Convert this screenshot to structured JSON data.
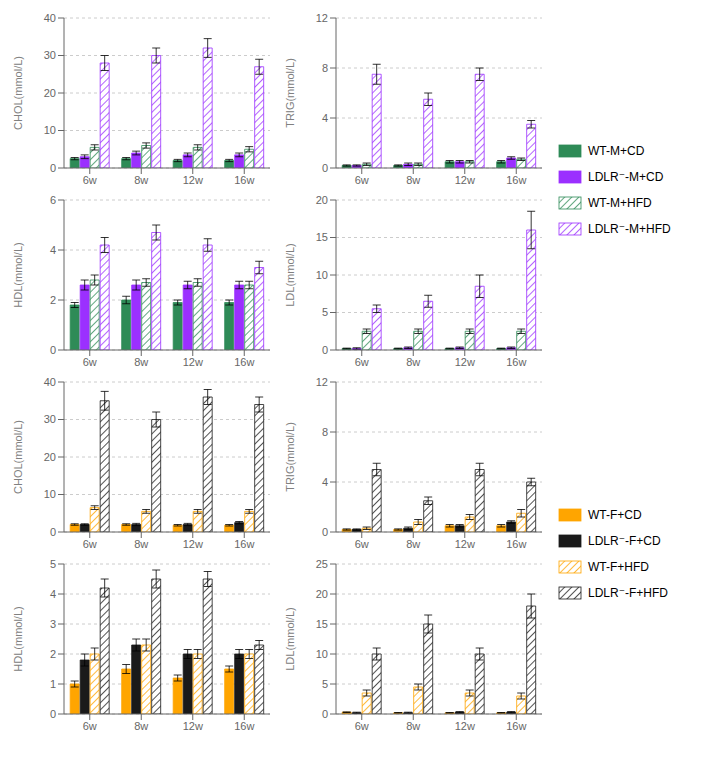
{
  "chart_data": [
    {
      "type": "bar",
      "ylabel": "CHOL(mmol/L)",
      "categories": [
        "6w",
        "8w",
        "12w",
        "16w"
      ],
      "ylim": [
        0,
        40
      ],
      "yticks": [
        0,
        10,
        20,
        30,
        40
      ],
      "legend": "right",
      "series": [
        {
          "name": "WT-M+CD",
          "color": "#2e8b57",
          "values": [
            2.5,
            2.5,
            2.0,
            2.0
          ],
          "errors": [
            0.3,
            0.3,
            0.3,
            0.3
          ]
        },
        {
          "name": "LDLR⁻-M+CD",
          "color": "#9b30ff",
          "values": [
            3.0,
            4.0,
            3.5,
            3.5
          ],
          "errors": [
            0.5,
            0.5,
            0.5,
            0.5
          ]
        },
        {
          "name": "WT-M+HFD",
          "color": "#2e8b57",
          "values": [
            5.5,
            6.0,
            5.5,
            5.0
          ],
          "errors": [
            0.7,
            0.7,
            0.7,
            0.7
          ]
        },
        {
          "name": "LDLR⁻-M+HFD",
          "color": "#9b30ff",
          "values": [
            28.0,
            30.0,
            32.0,
            27.0
          ],
          "errors": [
            2.0,
            2.0,
            2.5,
            2.0
          ]
        }
      ]
    },
    {
      "type": "bar",
      "ylabel": "TRIG(mmol/L)",
      "categories": [
        "6w",
        "8w",
        "12w",
        "16w"
      ],
      "ylim": [
        0,
        12
      ],
      "yticks": [
        0,
        4,
        8,
        12
      ],
      "series": [
        {
          "name": "WT-M+CD",
          "color": "#2e8b57",
          "values": [
            0.2,
            0.2,
            0.5,
            0.5
          ],
          "errors": [
            0.05,
            0.05,
            0.1,
            0.1
          ]
        },
        {
          "name": "LDLR⁻-M+CD",
          "color": "#9b30ff",
          "values": [
            0.2,
            0.3,
            0.5,
            0.8
          ],
          "errors": [
            0.05,
            0.1,
            0.1,
            0.1
          ]
        },
        {
          "name": "WT-M+HFD",
          "color": "#2e8b57",
          "values": [
            0.3,
            0.3,
            0.5,
            0.7
          ],
          "errors": [
            0.1,
            0.1,
            0.1,
            0.1
          ]
        },
        {
          "name": "LDLR⁻-M+HFD",
          "color": "#9b30ff",
          "values": [
            7.5,
            5.5,
            7.5,
            3.5
          ],
          "errors": [
            0.8,
            0.5,
            0.5,
            0.3
          ]
        }
      ]
    },
    {
      "type": "bar",
      "ylabel": "HDL(mmol/L)",
      "categories": [
        "6w",
        "8w",
        "12w",
        "16w"
      ],
      "ylim": [
        0,
        6
      ],
      "yticks": [
        0,
        2,
        4,
        6
      ],
      "series": [
        {
          "name": "WT-M+CD",
          "color": "#2e8b57",
          "values": [
            1.8,
            2.0,
            1.9,
            1.9
          ],
          "errors": [
            0.1,
            0.15,
            0.1,
            0.1
          ]
        },
        {
          "name": "LDLR⁻-M+CD",
          "color": "#9b30ff",
          "values": [
            2.6,
            2.6,
            2.6,
            2.6
          ],
          "errors": [
            0.2,
            0.2,
            0.15,
            0.15
          ]
        },
        {
          "name": "WT-M+HFD",
          "color": "#2e8b57",
          "values": [
            2.8,
            2.7,
            2.7,
            2.6
          ],
          "errors": [
            0.2,
            0.15,
            0.15,
            0.15
          ]
        },
        {
          "name": "LDLR⁻-M+HFD",
          "color": "#9b30ff",
          "values": [
            4.2,
            4.7,
            4.2,
            3.3
          ],
          "errors": [
            0.3,
            0.3,
            0.25,
            0.25
          ]
        }
      ]
    },
    {
      "type": "bar",
      "ylabel": "LDL(mmol/L)",
      "categories": [
        "6w",
        "8w",
        "12w",
        "16w"
      ],
      "ylim": [
        0,
        20
      ],
      "yticks": [
        0,
        5,
        10,
        15,
        20
      ],
      "series": [
        {
          "name": "WT-M+CD",
          "color": "#2e8b57",
          "values": [
            0.2,
            0.2,
            0.2,
            0.2
          ],
          "errors": [
            0.05,
            0.05,
            0.05,
            0.05
          ]
        },
        {
          "name": "LDLR⁻-M+CD",
          "color": "#9b30ff",
          "values": [
            0.2,
            0.3,
            0.3,
            0.3
          ],
          "errors": [
            0.1,
            0.1,
            0.1,
            0.1
          ]
        },
        {
          "name": "WT-M+HFD",
          "color": "#2e8b57",
          "values": [
            2.5,
            2.5,
            2.5,
            2.5
          ],
          "errors": [
            0.3,
            0.3,
            0.3,
            0.3
          ]
        },
        {
          "name": "LDLR⁻-M+HFD",
          "color": "#9b30ff",
          "values": [
            5.5,
            6.5,
            8.5,
            16.0
          ],
          "errors": [
            0.5,
            0.8,
            1.5,
            2.5
          ]
        }
      ]
    },
    {
      "type": "bar",
      "ylabel": "CHOL(mmol/L)",
      "categories": [
        "6w",
        "8w",
        "12w",
        "16w"
      ],
      "ylim": [
        0,
        40
      ],
      "yticks": [
        0,
        10,
        20,
        30,
        40
      ],
      "legend": "right",
      "series": [
        {
          "name": "WT-F+CD",
          "color": "#ffa500",
          "values": [
            2.0,
            2.0,
            1.8,
            1.8
          ],
          "errors": [
            0.2,
            0.2,
            0.2,
            0.2
          ]
        },
        {
          "name": "LDLR⁻-F+CD",
          "color": "#1a1a1a",
          "values": [
            2.0,
            2.0,
            2.0,
            2.5
          ],
          "errors": [
            0.2,
            0.3,
            0.3,
            0.3
          ]
        },
        {
          "name": "WT-F+HFD",
          "color": "#ffa500",
          "values": [
            6.5,
            5.5,
            5.5,
            5.5
          ],
          "errors": [
            0.5,
            0.5,
            0.5,
            0.5
          ]
        },
        {
          "name": "LDLR⁻-F+HFD",
          "color": "#1a1a1a",
          "values": [
            35.0,
            30.0,
            36.0,
            34.0
          ],
          "errors": [
            2.5,
            2.0,
            2.0,
            2.0
          ]
        }
      ]
    },
    {
      "type": "bar",
      "ylabel": "TRIG(mmol/L)",
      "categories": [
        "6w",
        "8w",
        "12w",
        "16w"
      ],
      "ylim": [
        0,
        12
      ],
      "yticks": [
        0,
        4,
        8,
        12
      ],
      "series": [
        {
          "name": "WT-F+CD",
          "color": "#ffa500",
          "values": [
            0.2,
            0.2,
            0.5,
            0.5
          ],
          "errors": [
            0.05,
            0.05,
            0.1,
            0.1
          ]
        },
        {
          "name": "LDLR⁻-F+CD",
          "color": "#1a1a1a",
          "values": [
            0.2,
            0.3,
            0.5,
            0.8
          ],
          "errors": [
            0.05,
            0.1,
            0.1,
            0.1
          ]
        },
        {
          "name": "WT-F+HFD",
          "color": "#ffa500",
          "values": [
            0.3,
            0.8,
            1.2,
            1.5
          ],
          "errors": [
            0.1,
            0.2,
            0.2,
            0.3
          ]
        },
        {
          "name": "LDLR⁻-F+HFD",
          "color": "#1a1a1a",
          "values": [
            5.0,
            2.5,
            5.0,
            4.0
          ],
          "errors": [
            0.5,
            0.3,
            0.5,
            0.3
          ]
        }
      ]
    },
    {
      "type": "bar",
      "ylabel": "HDL(mmol/L)",
      "categories": [
        "6w",
        "8w",
        "12w",
        "16w"
      ],
      "ylim": [
        0,
        5
      ],
      "yticks": [
        0,
        1,
        2,
        3,
        4,
        5
      ],
      "series": [
        {
          "name": "WT-F+CD",
          "color": "#ffa500",
          "values": [
            1.0,
            1.5,
            1.2,
            1.5
          ],
          "errors": [
            0.1,
            0.15,
            0.1,
            0.1
          ]
        },
        {
          "name": "LDLR⁻-F+CD",
          "color": "#1a1a1a",
          "values": [
            1.8,
            2.3,
            2.0,
            2.0
          ],
          "errors": [
            0.2,
            0.2,
            0.15,
            0.15
          ]
        },
        {
          "name": "WT-F+HFD",
          "color": "#ffa500",
          "values": [
            2.0,
            2.3,
            2.0,
            2.0
          ],
          "errors": [
            0.2,
            0.2,
            0.15,
            0.15
          ]
        },
        {
          "name": "LDLR⁻-F+HFD",
          "color": "#1a1a1a",
          "values": [
            4.2,
            4.5,
            4.5,
            2.3
          ],
          "errors": [
            0.3,
            0.3,
            0.25,
            0.15
          ]
        }
      ]
    },
    {
      "type": "bar",
      "ylabel": "LDL(mmol/L)",
      "categories": [
        "6w",
        "8w",
        "12w",
        "16w"
      ],
      "ylim": [
        0,
        25
      ],
      "yticks": [
        0,
        5,
        10,
        15,
        20,
        25
      ],
      "series": [
        {
          "name": "WT-F+CD",
          "color": "#ffa500",
          "values": [
            0.3,
            0.2,
            0.2,
            0.2
          ],
          "errors": [
            0.05,
            0.05,
            0.05,
            0.05
          ]
        },
        {
          "name": "LDLR⁻-F+CD",
          "color": "#1a1a1a",
          "values": [
            0.2,
            0.2,
            0.3,
            0.3
          ],
          "errors": [
            0.1,
            0.1,
            0.1,
            0.1
          ]
        },
        {
          "name": "WT-F+HFD",
          "color": "#ffa500",
          "values": [
            3.5,
            4.5,
            3.5,
            3.0
          ],
          "errors": [
            0.5,
            0.5,
            0.5,
            0.5
          ]
        },
        {
          "name": "LDLR⁻-F+HFD",
          "color": "#1a1a1a",
          "values": [
            10.0,
            15.0,
            10.0,
            18.0
          ],
          "errors": [
            1.0,
            1.5,
            1.0,
            2.0
          ]
        }
      ]
    }
  ]
}
